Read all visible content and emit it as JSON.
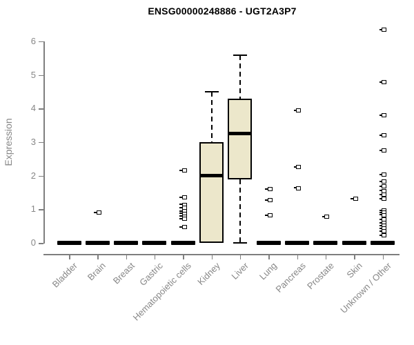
{
  "chart_data": {
    "type": "boxplot",
    "title": "ENSG00000248886 - UGT2A3P7",
    "ylabel": "Expression",
    "xlabel": "",
    "ylim": [
      0,
      6.5
    ],
    "yticks": [
      0,
      1,
      2,
      3,
      4,
      5,
      6
    ],
    "grid": false,
    "legend": "none",
    "categories": [
      "Bladder",
      "Brain",
      "Breast",
      "Gastric",
      "Hematopoietic cells",
      "Kidney",
      "Liver",
      "Lung",
      "Pancreas",
      "Prostate",
      "Skin",
      "Unknown / Other"
    ],
    "series": [
      {
        "label": "Bladder",
        "q1": 0,
        "median": 0,
        "q3": 0,
        "whisker_low": 0,
        "whisker_high": 0,
        "outliers": []
      },
      {
        "label": "Brain",
        "q1": 0,
        "median": 0,
        "q3": 0,
        "whisker_low": 0,
        "whisker_high": 0,
        "outliers": [
          0.9
        ]
      },
      {
        "label": "Breast",
        "q1": 0,
        "median": 0,
        "q3": 0,
        "whisker_low": 0,
        "whisker_high": 0,
        "outliers": []
      },
      {
        "label": "Gastric",
        "q1": 0,
        "median": 0,
        "q3": 0,
        "whisker_low": 0,
        "whisker_high": 0,
        "outliers": []
      },
      {
        "label": "Hematopoietic cells",
        "q1": 0,
        "median": 0,
        "q3": 0,
        "whisker_low": 0,
        "whisker_high": 0,
        "outliers": [
          2.15,
          1.35,
          1.14,
          1.04,
          0.95,
          0.87,
          0.79,
          0.71,
          0.47
        ]
      },
      {
        "label": "Kidney",
        "q1": 0,
        "median": 2.0,
        "q3": 3.0,
        "whisker_low": 0,
        "whisker_high": 4.5,
        "outliers": []
      },
      {
        "label": "Liver",
        "q1": 1.9,
        "median": 3.25,
        "q3": 4.3,
        "whisker_low": 0,
        "whisker_high": 5.58,
        "outliers": []
      },
      {
        "label": "Lung",
        "q1": 0,
        "median": 0,
        "q3": 0,
        "whisker_low": 0,
        "whisker_high": 0,
        "outliers": [
          1.6,
          1.27,
          0.82
        ]
      },
      {
        "label": "Pancreas",
        "q1": 0,
        "median": 0,
        "q3": 0,
        "whisker_low": 0,
        "whisker_high": 0,
        "outliers": [
          3.95,
          2.25,
          1.63
        ]
      },
      {
        "label": "Prostate",
        "q1": 0,
        "median": 0,
        "q3": 0,
        "whisker_low": 0,
        "whisker_high": 0,
        "outliers": [
          0.78
        ]
      },
      {
        "label": "Skin",
        "q1": 0,
        "median": 0,
        "q3": 0,
        "whisker_low": 0,
        "whisker_high": 0,
        "outliers": [
          1.31
        ]
      },
      {
        "label": "Unknown / Other",
        "q1": 0,
        "median": 0,
        "q3": 0,
        "whisker_low": 0,
        "whisker_high": 0,
        "outliers": [
          6.35,
          4.78,
          3.8,
          3.2,
          2.75,
          2.03,
          1.82,
          1.68,
          1.55,
          1.43,
          1.31,
          0.97,
          0.9,
          0.83,
          0.7,
          0.6,
          0.51,
          0.43,
          0.35,
          0.23
        ]
      }
    ],
    "colors": {
      "box_fill": "#ECE7CB",
      "box_border": "#000000",
      "median": "#000000",
      "outlier": "#000000",
      "axis": "#7E7E7E",
      "tick_label": "#878787",
      "title": "#000000"
    }
  }
}
